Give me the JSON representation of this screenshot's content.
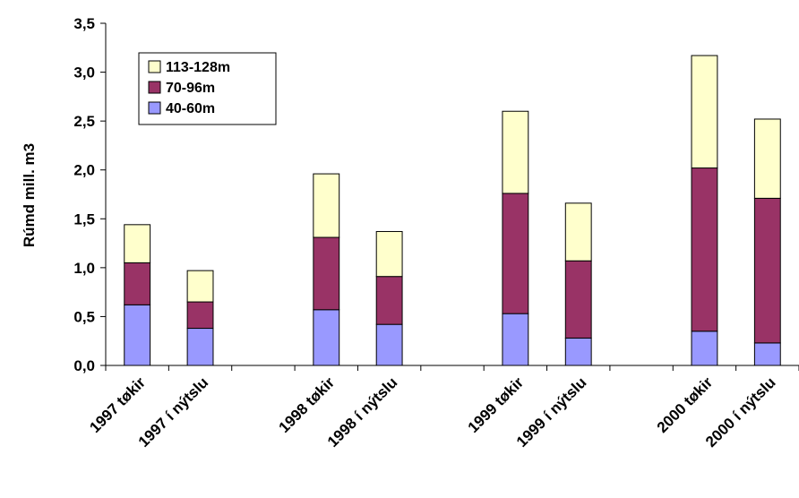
{
  "chart_data": {
    "type": "bar",
    "stacked": true,
    "categories": [
      "1997 tøkir",
      "1997 í nýtslu",
      "",
      "1998 tøkir",
      "1998 í nýtslu",
      "",
      "1999 tøkir",
      "1999 í nýtslu",
      "",
      "2000 tøkir",
      "2000 í nýtslu"
    ],
    "series": [
      {
        "name": "40-60m",
        "color": "#9999ff",
        "values": [
          0.62,
          0.38,
          null,
          0.57,
          0.42,
          null,
          0.53,
          0.28,
          null,
          0.35,
          0.23
        ]
      },
      {
        "name": "70-96m",
        "color": "#993366",
        "values": [
          0.43,
          0.27,
          null,
          0.74,
          0.49,
          null,
          1.23,
          0.79,
          null,
          1.67,
          1.48
        ]
      },
      {
        "name": "113-128m",
        "color": "#ffffcc",
        "values": [
          0.39,
          0.32,
          null,
          0.65,
          0.46,
          null,
          0.84,
          0.59,
          null,
          1.15,
          0.81
        ]
      }
    ],
    "ylabel": "Rúmd mill. m3",
    "xlabel": "",
    "ylim": [
      0,
      3.5
    ],
    "yticks": [
      "0,0",
      "0,5",
      "1,0",
      "1,5",
      "2,0",
      "2,5",
      "3,0",
      "3,5"
    ],
    "grid": false,
    "legend": {
      "position": "top-left",
      "entries": [
        {
          "label": "113-128m",
          "color": "#ffffcc"
        },
        {
          "label": "70-96m",
          "color": "#993366"
        },
        {
          "label": "40-60m",
          "color": "#9999ff"
        }
      ]
    }
  }
}
